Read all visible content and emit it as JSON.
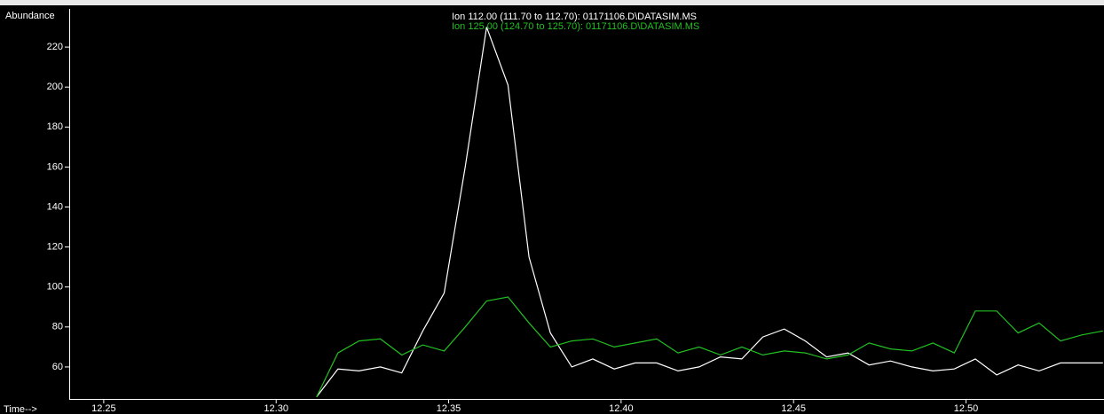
{
  "chart_data": {
    "type": "line",
    "ylabel": "Abundance",
    "xlabel": "Time-->",
    "x": [
      12.3117,
      12.3179,
      12.324,
      12.3302,
      12.3364,
      12.3425,
      12.3487,
      12.3548,
      12.361,
      12.3672,
      12.3733,
      12.3795,
      12.3857,
      12.3918,
      12.398,
      12.4041,
      12.4103,
      12.4165,
      12.4226,
      12.4288,
      12.435,
      12.4411,
      12.4473,
      12.4534,
      12.4596,
      12.4658,
      12.4719,
      12.4781,
      12.4843,
      12.4904,
      12.4966,
      12.5027,
      12.5089,
      12.5151,
      12.5212,
      12.5274,
      12.5336,
      12.5397
    ],
    "series": [
      {
        "name": "Ion 112.00 (111.70 to 112.70): 01171106.D\\DATASIM.MS",
        "color": "#ffffff",
        "values": [
          45,
          59,
          58,
          60,
          57,
          78,
          97,
          160,
          230,
          201,
          115,
          77,
          60,
          64,
          59,
          62,
          62,
          58,
          60,
          65,
          64,
          75,
          79,
          73,
          65,
          67,
          61,
          63,
          60,
          58,
          59,
          64,
          56,
          61,
          58,
          62,
          62,
          62
        ]
      },
      {
        "name": "Ion 125.00 (124.70 to 125.70): 01171106.D\\DATASIM.MS",
        "color": "#22c022",
        "values": [
          45,
          67,
          73,
          74,
          66,
          71,
          68,
          80,
          93,
          95,
          82,
          70,
          73,
          74,
          70,
          72,
          74,
          67,
          70,
          66,
          70,
          66,
          68,
          67,
          64,
          66,
          72,
          69,
          68,
          72,
          67,
          88,
          88,
          77,
          82,
          73,
          76,
          78
        ]
      }
    ],
    "xlim": [
      12.24,
      12.54
    ],
    "ylim": [
      44,
      240
    ],
    "xticks": [
      12.25,
      {
        "value": 12.3,
        "label": "12.30"
      },
      12.35,
      {
        "value": 12.4,
        "label": "12.40"
      },
      12.45,
      {
        "value": 12.5,
        "label": "12.50"
      }
    ],
    "yticks": [
      60,
      80,
      100,
      120,
      140,
      160,
      180,
      200,
      220
    ]
  }
}
